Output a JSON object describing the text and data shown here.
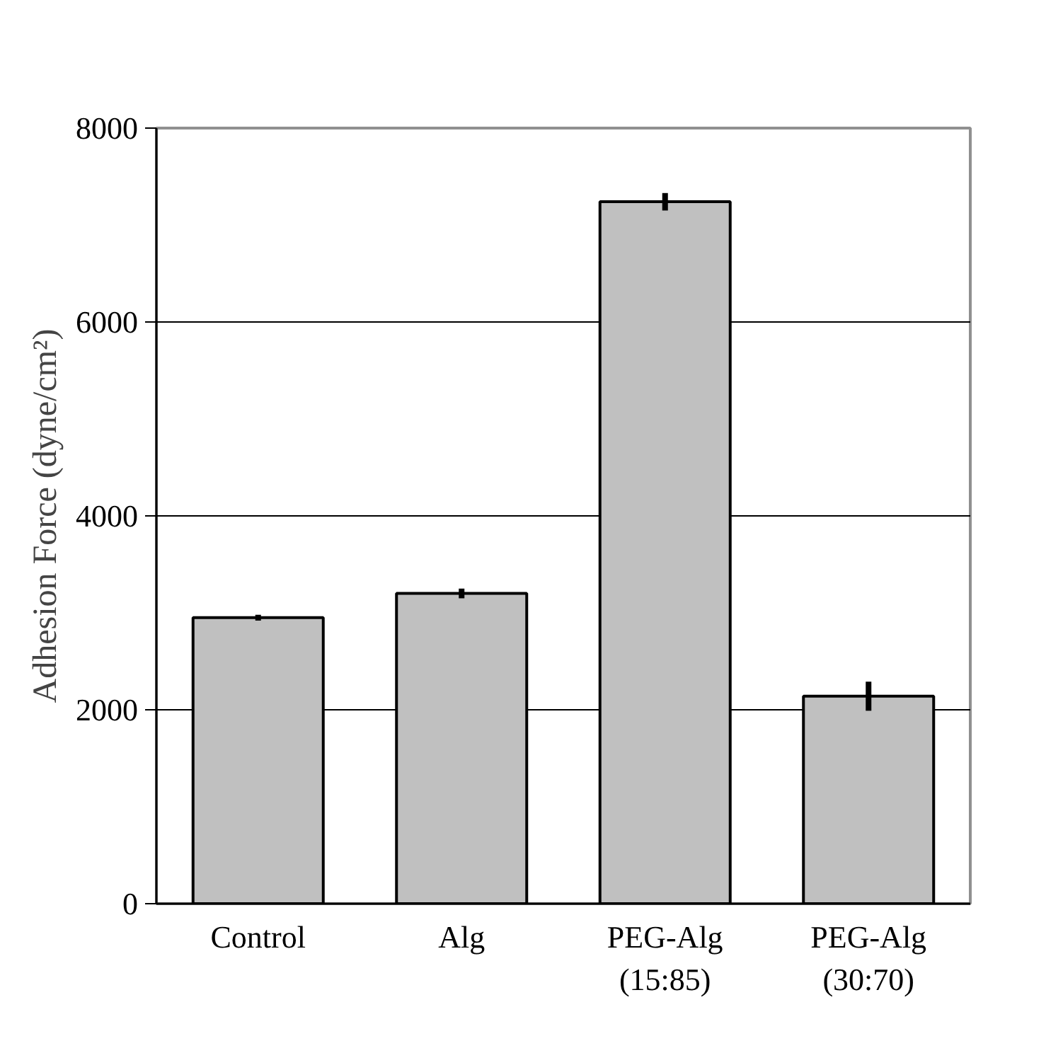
{
  "chart_data": {
    "type": "bar",
    "ylabel": "Adhesion Force (dyne/cm²)",
    "categories": [
      "Control",
      "Alg",
      "PEG-Alg\n(15:85)",
      "PEG-Alg\n(30:70)"
    ],
    "values": [
      2950,
      3200,
      7240,
      2140
    ],
    "errors": [
      30,
      50,
      90,
      150
    ],
    "color": "#c0c0c0",
    "ylim": [
      0,
      8000
    ],
    "yticks": [
      0,
      2000,
      4000,
      6000,
      8000
    ],
    "grid": "y"
  }
}
